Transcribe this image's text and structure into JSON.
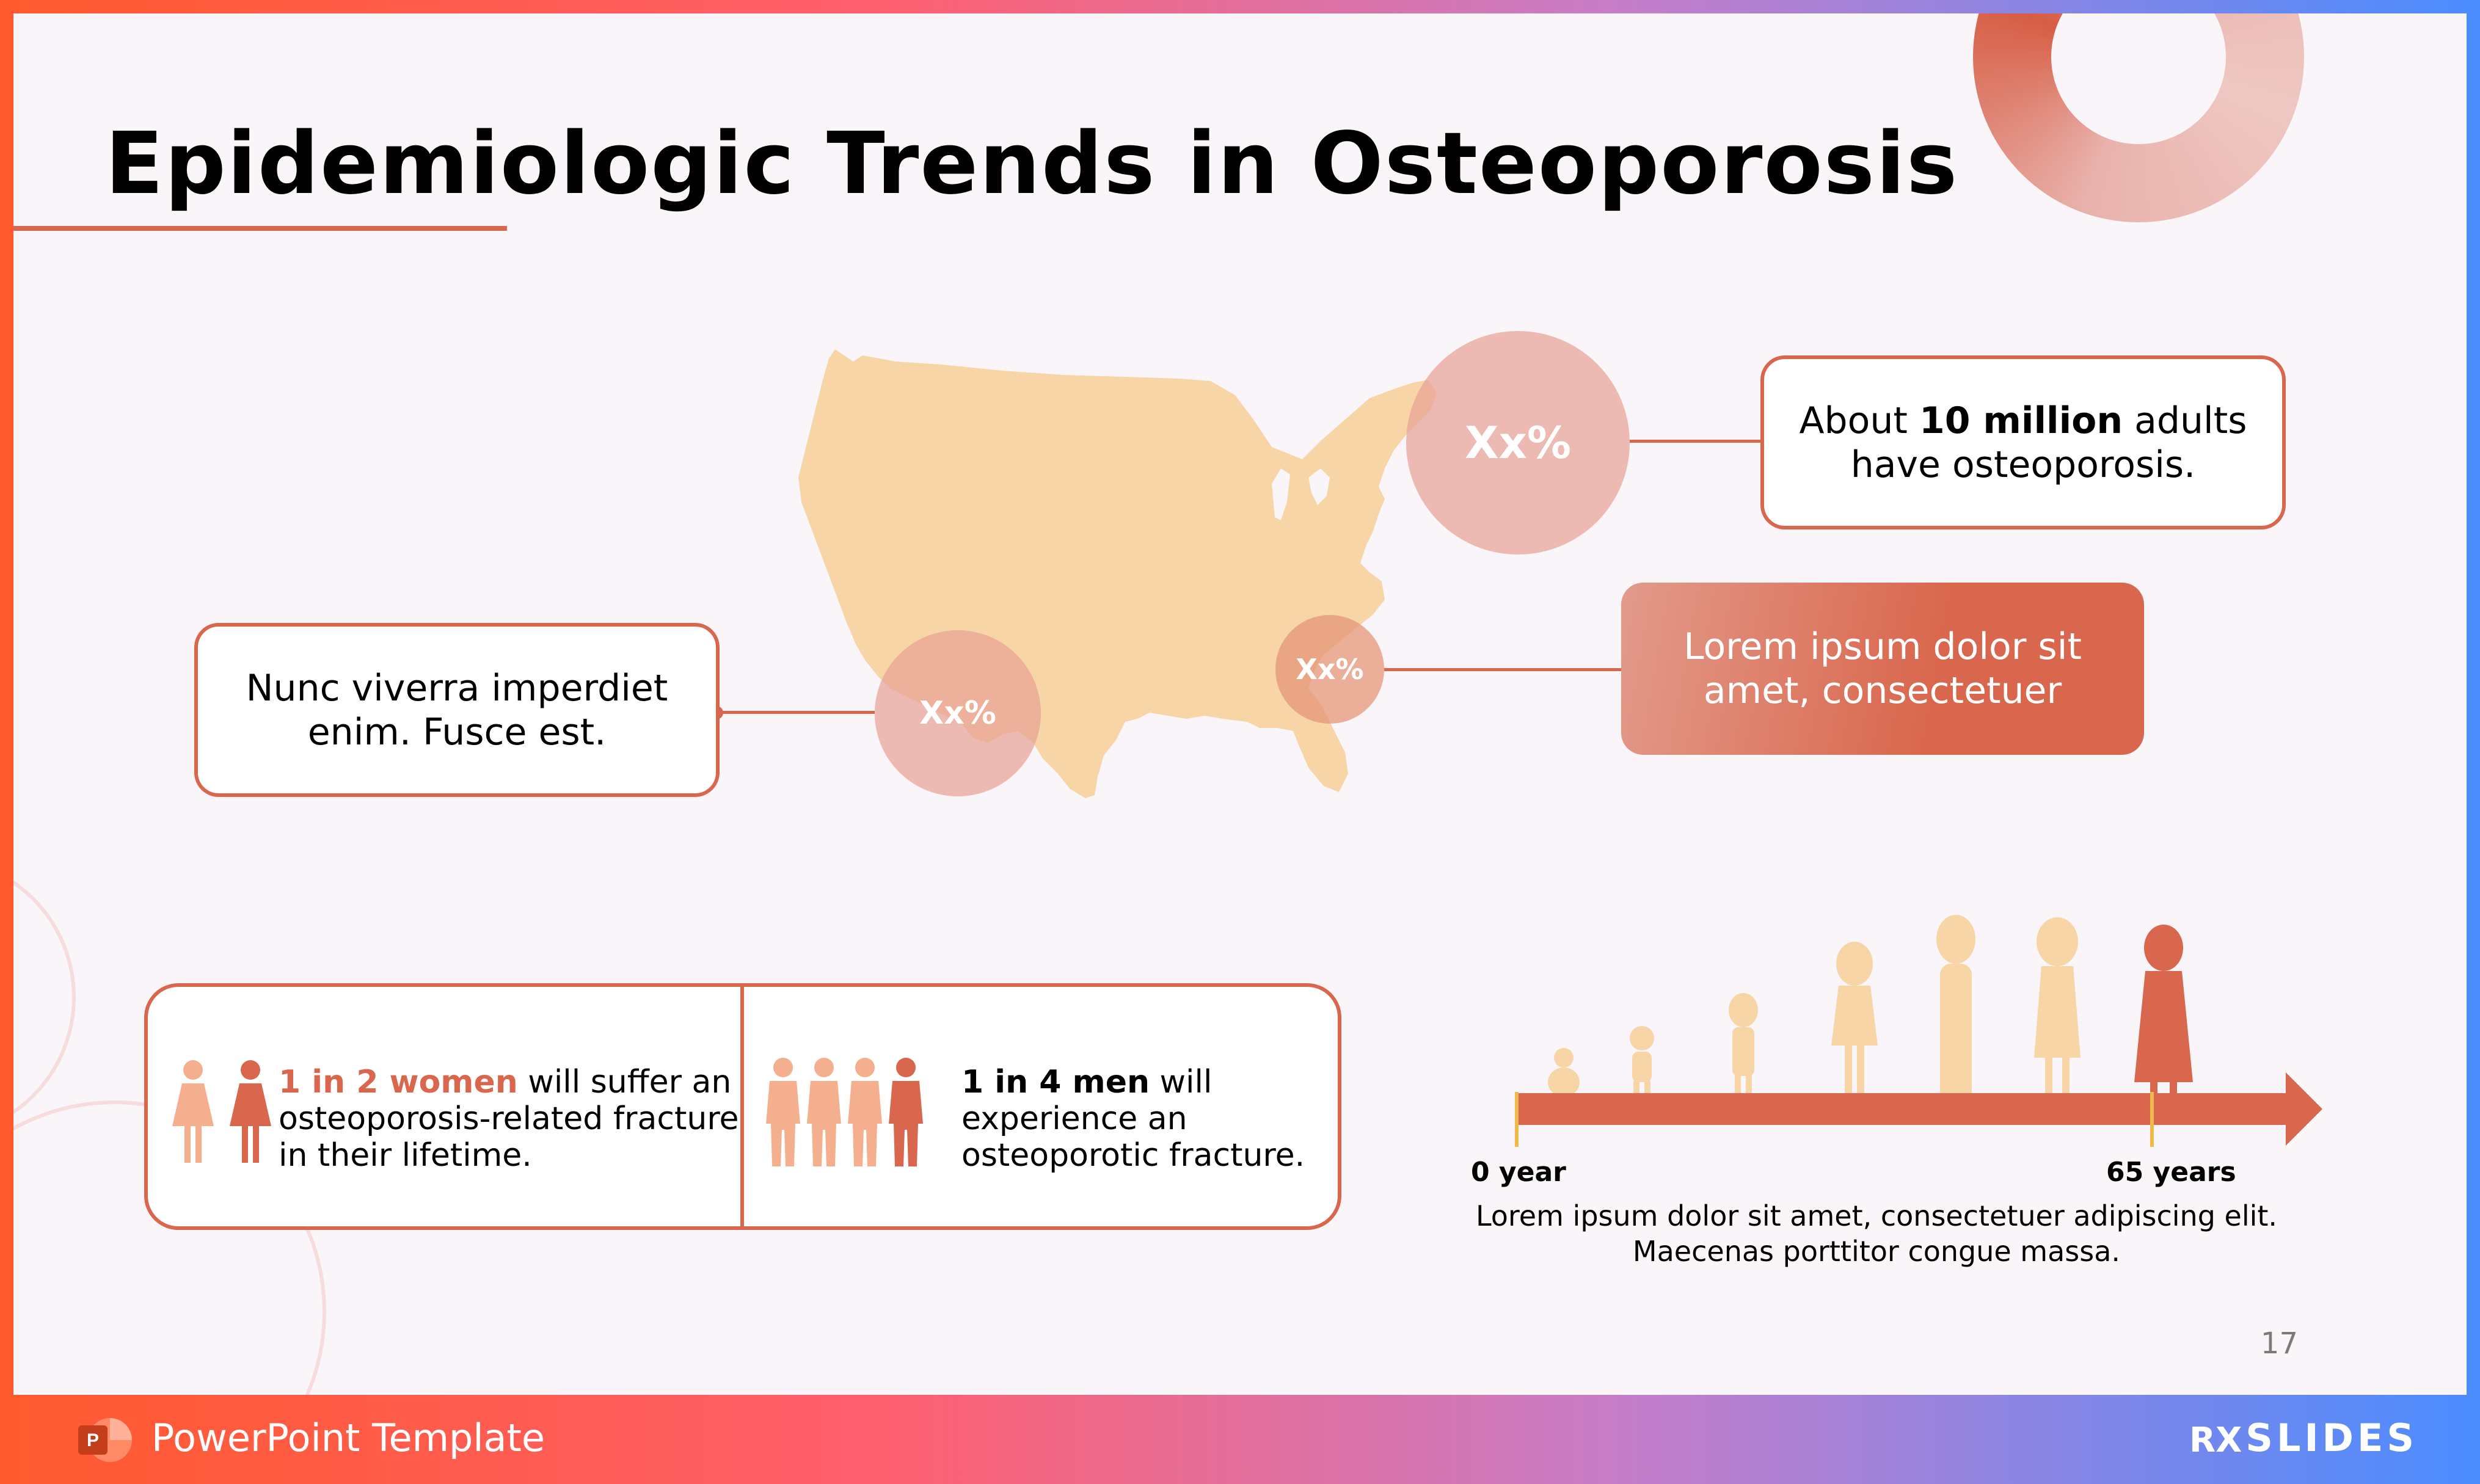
{
  "slide": {
    "title": "Epidemiologic Trends in Osteoporosis",
    "page_number": "17"
  },
  "map": {
    "circle_northeast": "Xx%",
    "circle_southeast": "Xx%",
    "circle_southwest": "Xx%"
  },
  "callouts": {
    "northeast": {
      "pre": "About ",
      "bold": "10 million",
      "post": " adults have osteoporosis."
    },
    "southeast": "Lorem ipsum dolor sit amet, consectetuer",
    "southwest": "Nunc viverra imperdiet enim. Fusce est."
  },
  "stats": {
    "women": {
      "highlight": "1 in 2 women",
      "rest": " will suffer an osteoporosis-related fracture in their lifetime."
    },
    "men": {
      "highlight": "1 in 4 men",
      "rest": " will experience an osteoporotic fracture."
    }
  },
  "timeline": {
    "start_label": "0 year",
    "end_label": "65 years",
    "caption_line1": "Lorem ipsum dolor sit amet, consectetuer adipiscing elit.",
    "caption_line2": "Maecenas porttitor congue massa."
  },
  "footer": {
    "app_label": "PowerPoint Template",
    "brand": "SLIDES",
    "brand_prefix": "RX"
  },
  "colors": {
    "accent": "#d9674d",
    "map": "#f7d5a6",
    "light_circle": "#e9b2ac"
  },
  "icons": [
    "powerpoint-icon",
    "woman-icon",
    "man-icon",
    "person-silhouette-icon"
  ]
}
